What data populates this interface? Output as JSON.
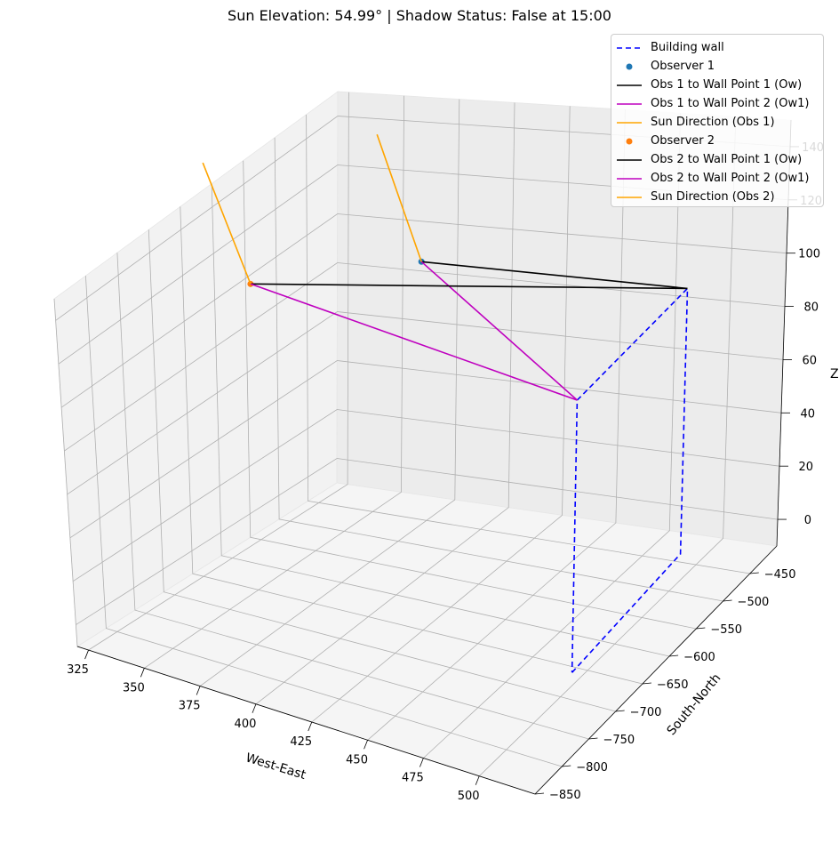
{
  "title": "Sun Elevation: 54.99° | Shadow Status: False at 15:00",
  "chart_data": {
    "type": "line",
    "projection": "3d",
    "title": "Sun Elevation: 54.99° | Shadow Status: False at 15:00",
    "xlabel": "West-East",
    "ylabel": "South-North",
    "zlabel": "Z",
    "xlim": [
      320,
      525
    ],
    "ylim": [
      -850,
      -400
    ],
    "zlim": [
      -10,
      150
    ],
    "xticks": [
      "325",
      "350",
      "375",
      "400",
      "425",
      "450",
      "475",
      "500"
    ],
    "yticks": [
      "−850",
      "−800",
      "−750",
      "−700",
      "−650",
      "−600",
      "−550",
      "−500",
      "−450"
    ],
    "zticks": [
      "0",
      "20",
      "40",
      "60",
      "80",
      "100",
      "120",
      "140"
    ],
    "grid": true,
    "legend_position": "top-right",
    "series": [
      {
        "name": "Building wall",
        "kind": "line",
        "style": "dashed",
        "color": "#0000ff",
        "points": [
          [
            505,
            -700,
            0
          ],
          [
            500,
            -480,
            0
          ],
          [
            500,
            -480,
            100
          ],
          [
            505,
            -700,
            100
          ],
          [
            505,
            -700,
            0
          ]
        ]
      },
      {
        "name": "Observer 1",
        "kind": "scatter",
        "color": "#1f77b4",
        "points": [
          [
            380,
            -480,
            100
          ]
        ]
      },
      {
        "name": "Obs 1 to Wall Point 1 (Ow)",
        "kind": "line",
        "color": "#000000",
        "points": [
          [
            380,
            -480,
            100
          ],
          [
            500,
            -480,
            100
          ]
        ]
      },
      {
        "name": "Obs 1 to Wall Point 2 (Ow1)",
        "kind": "line",
        "color": "#bf00bf",
        "points": [
          [
            380,
            -480,
            100
          ],
          [
            505,
            -700,
            100
          ]
        ]
      },
      {
        "name": "Sun Direction (Obs 1)",
        "kind": "line",
        "color": "#ffa500",
        "points": [
          [
            380,
            -480,
            100
          ],
          [
            360,
            -480,
            150
          ]
        ]
      },
      {
        "name": "Observer 2",
        "kind": "scatter",
        "color": "#ff7f0e",
        "points": [
          [
            325,
            -560,
            100
          ]
        ]
      },
      {
        "name": "Obs 2 to Wall Point 1 (Ow)",
        "kind": "line",
        "color": "#000000",
        "points": [
          [
            325,
            -560,
            100
          ],
          [
            500,
            -480,
            100
          ]
        ]
      },
      {
        "name": "Obs 2 to Wall Point 2 (Ow1)",
        "kind": "line",
        "color": "#bf00bf",
        "points": [
          [
            325,
            -560,
            100
          ],
          [
            505,
            -700,
            100
          ]
        ]
      },
      {
        "name": "Sun Direction (Obs 2)",
        "kind": "line",
        "color": "#ffa500",
        "points": [
          [
            325,
            -560,
            100
          ],
          [
            305,
            -560,
            150
          ]
        ]
      }
    ]
  }
}
